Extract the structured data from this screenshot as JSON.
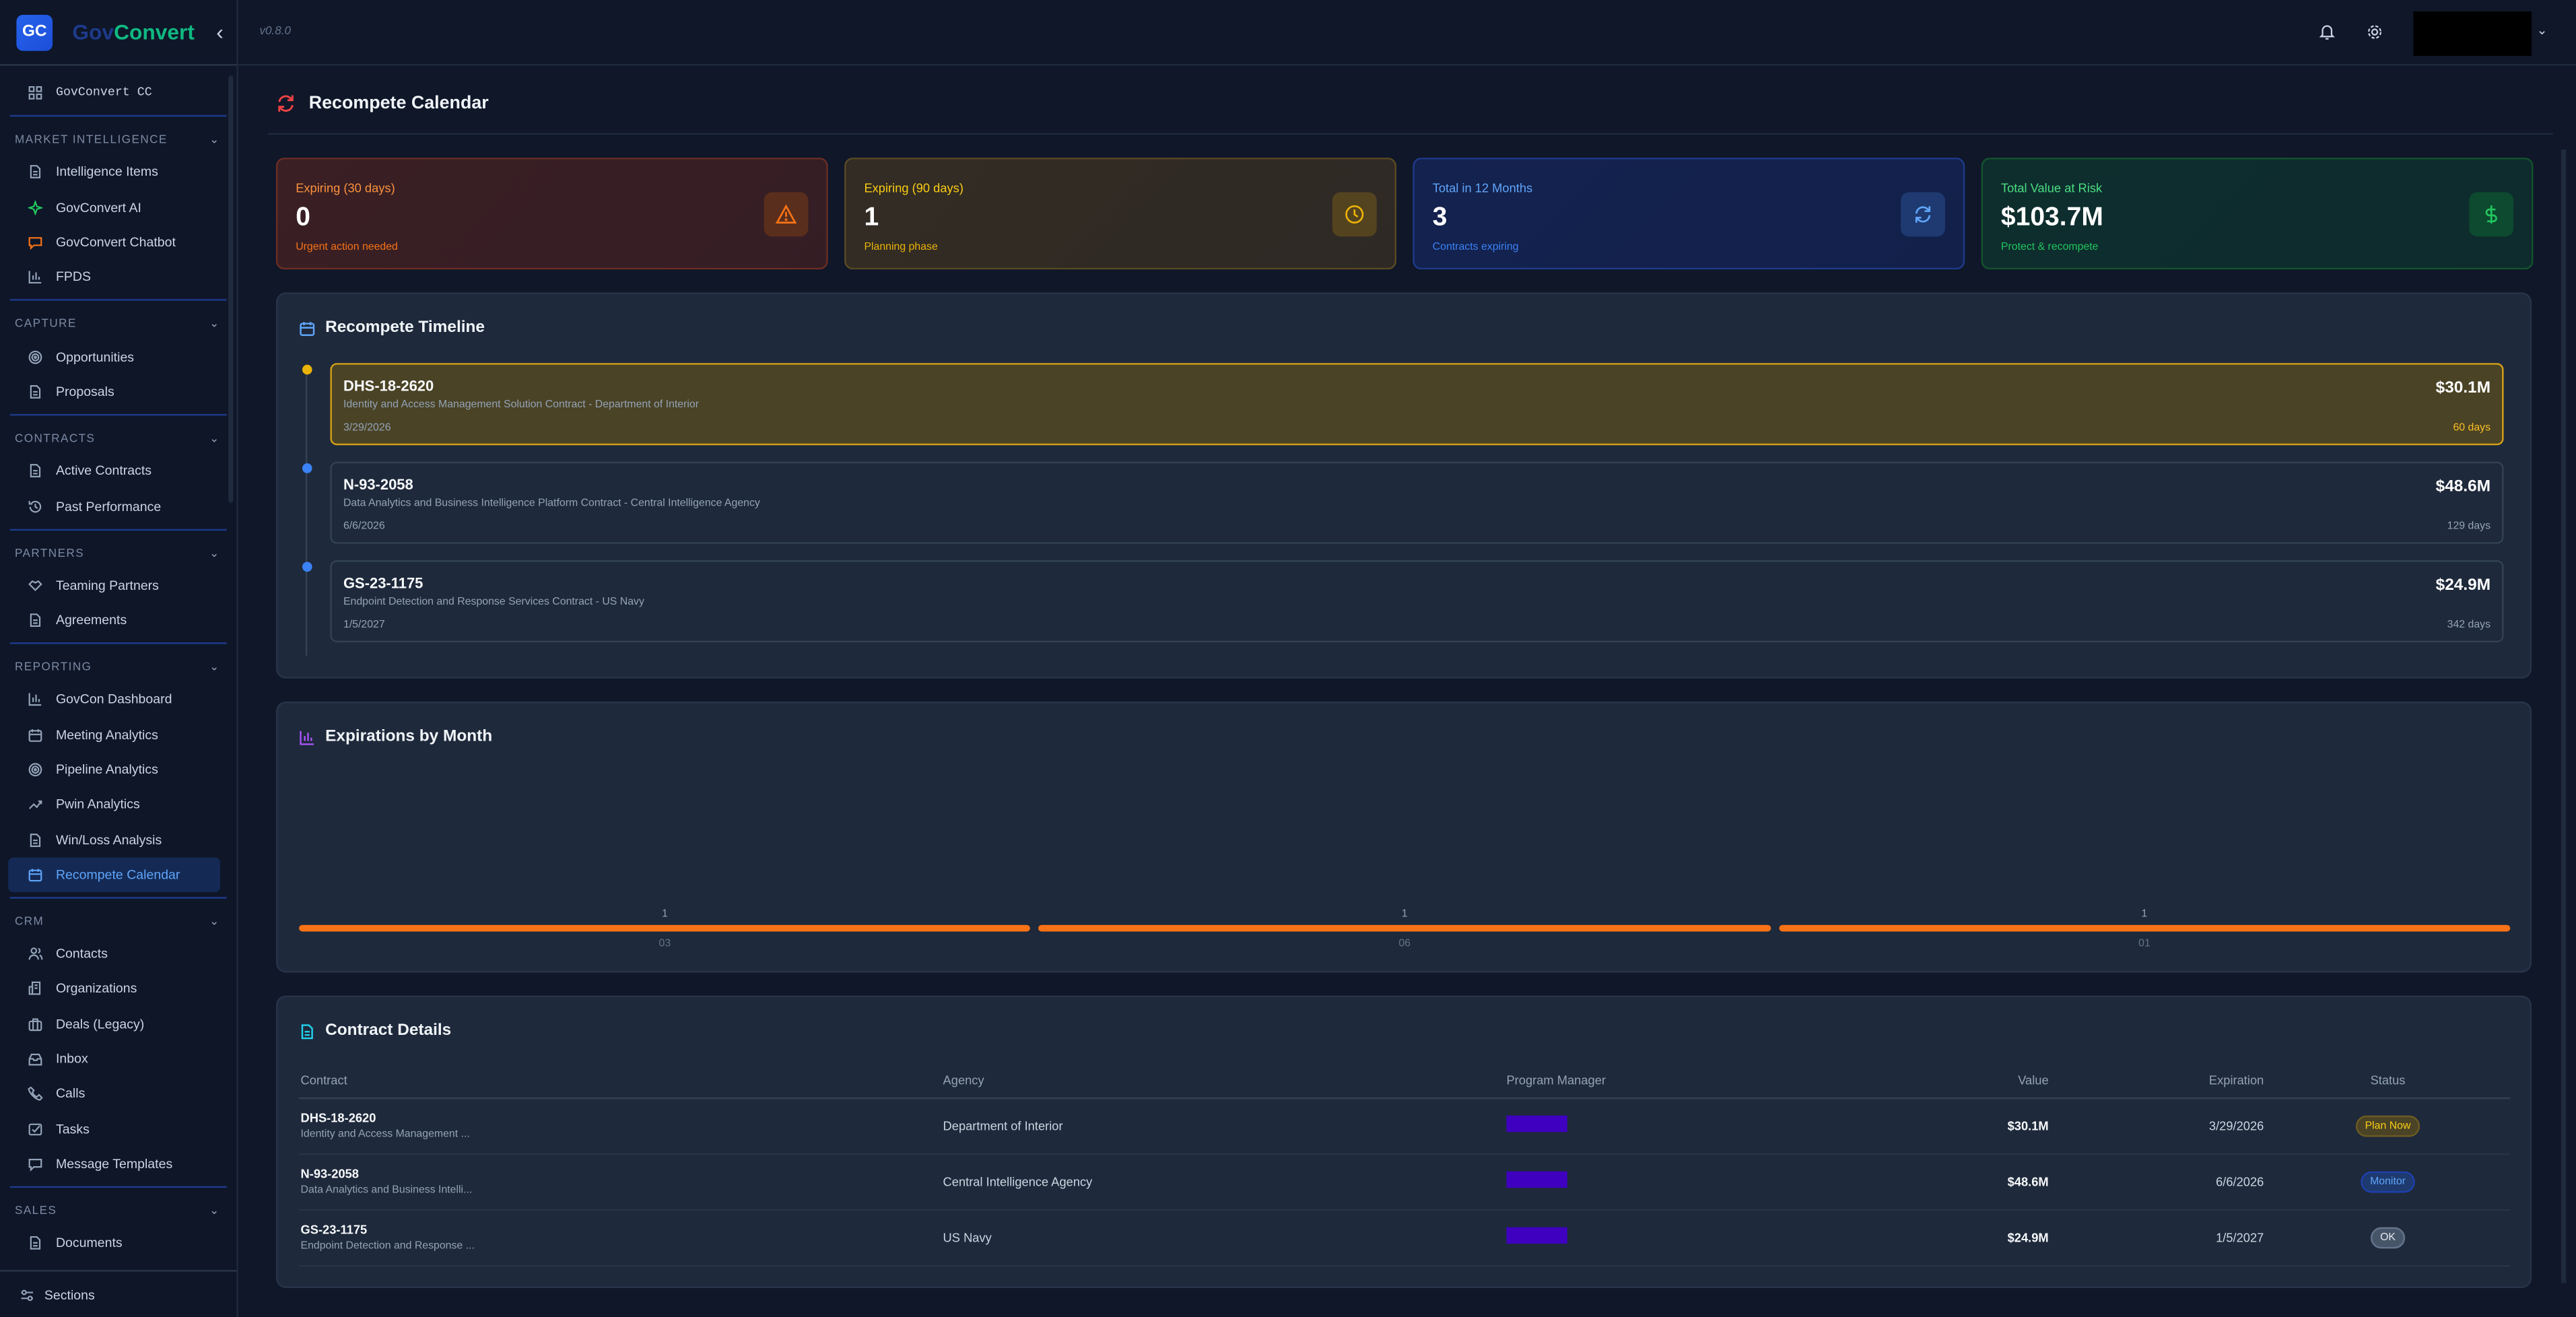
{
  "app": {
    "brand_part1": "Gov",
    "brand_part2": "Convert",
    "logo_text": "GC",
    "version": "v0.8.0"
  },
  "sidebar": {
    "top_item": "GovConvert CC",
    "sections": [
      {
        "title": "MARKET INTELLIGENCE",
        "items": [
          {
            "label": "Intelligence Items",
            "icon": "document-icon"
          },
          {
            "label": "GovConvert AI",
            "icon": "sparkles-icon"
          },
          {
            "label": "GovConvert Chatbot",
            "icon": "chat-icon"
          },
          {
            "label": "FPDS",
            "icon": "bar-chart-icon"
          }
        ]
      },
      {
        "title": "CAPTURE",
        "items": [
          {
            "label": "Opportunities",
            "icon": "target-icon"
          },
          {
            "label": "Proposals",
            "icon": "document-icon"
          }
        ]
      },
      {
        "title": "CONTRACTS",
        "items": [
          {
            "label": "Active Contracts",
            "icon": "document-icon"
          },
          {
            "label": "Past Performance",
            "icon": "history-icon"
          }
        ]
      },
      {
        "title": "PARTNERS",
        "items": [
          {
            "label": "Teaming Partners",
            "icon": "handshake-icon"
          },
          {
            "label": "Agreements",
            "icon": "document-icon"
          }
        ]
      },
      {
        "title": "REPORTING",
        "items": [
          {
            "label": "GovCon Dashboard",
            "icon": "bar-chart-icon"
          },
          {
            "label": "Meeting Analytics",
            "icon": "calendar-icon"
          },
          {
            "label": "Pipeline Analytics",
            "icon": "target-icon"
          },
          {
            "label": "Pwin Analytics",
            "icon": "trending-up-icon"
          },
          {
            "label": "Win/Loss Analysis",
            "icon": "document-icon"
          },
          {
            "label": "Recompete Calendar",
            "icon": "calendar-icon",
            "active": true
          }
        ]
      },
      {
        "title": "CRM",
        "items": [
          {
            "label": "Contacts",
            "icon": "users-icon"
          },
          {
            "label": "Organizations",
            "icon": "building-icon"
          },
          {
            "label": "Deals (Legacy)",
            "icon": "briefcase-icon"
          },
          {
            "label": "Inbox",
            "icon": "inbox-icon"
          },
          {
            "label": "Calls",
            "icon": "phone-icon"
          },
          {
            "label": "Tasks",
            "icon": "checkbox-icon"
          },
          {
            "label": "Message Templates",
            "icon": "message-icon"
          }
        ]
      },
      {
        "title": "SALES",
        "items": [
          {
            "label": "Documents",
            "icon": "document-icon"
          }
        ]
      }
    ],
    "footer": "Sections"
  },
  "page": {
    "title": "Recompete Calendar"
  },
  "stats": [
    {
      "label": "Expiring (30 days)",
      "value": "0",
      "sub": "Urgent action needed",
      "icon": "alert-triangle-icon",
      "bg": "#3a1f24",
      "border": "#6b2d22",
      "label_color": "#fb923c",
      "sub_color": "#f97316",
      "icon_bg": "#5a2e1c",
      "icon_color": "#f97316"
    },
    {
      "label": "Expiring (90 days)",
      "value": "1",
      "sub": "Planning phase",
      "icon": "clock-icon",
      "bg": "#332c24",
      "border": "#5a4a22",
      "label_color": "#facc15",
      "sub_color": "#eab308",
      "icon_bg": "#54431f",
      "icon_color": "#eab308"
    },
    {
      "label": "Total in 12 Months",
      "value": "3",
      "sub": "Contracts expiring",
      "icon": "refresh-icon",
      "bg": "#13224f",
      "border": "#1e3a8a",
      "label_color": "#60a5fa",
      "sub_color": "#3b82f6",
      "icon_bg": "#1e3a70",
      "icon_color": "#60a5fa"
    },
    {
      "label": "Total Value at Risk",
      "value": "$103.7M",
      "sub": "Protect & recompete",
      "icon": "dollar-icon",
      "bg": "#0e2e2e",
      "border": "#14532d",
      "label_color": "#4ade80",
      "sub_color": "#22c55e",
      "icon_bg": "#0d4a30",
      "icon_color": "#22c55e"
    }
  ],
  "timeline": {
    "title": "Recompete Timeline",
    "items": [
      {
        "id": "DHS-18-2620",
        "desc": "Identity and Access Management Solution Contract - Department of Interior",
        "date": "3/29/2026",
        "value": "$30.1M",
        "days": "60 days",
        "highlight": true,
        "dot": "#eab308"
      },
      {
        "id": "N-93-2058",
        "desc": "Data Analytics and Business Intelligence Platform Contract - Central Intelligence Agency",
        "date": "6/6/2026",
        "value": "$48.6M",
        "days": "129 days",
        "dot": "#3b82f6"
      },
      {
        "id": "GS-23-1175",
        "desc": "Endpoint Detection and Response Services Contract - US Navy",
        "date": "1/5/2027",
        "value": "$24.9M",
        "days": "342 days",
        "dot": "#3b82f6"
      }
    ]
  },
  "chart_data": {
    "type": "bar",
    "title": "Expirations by Month",
    "categories": [
      "03",
      "06",
      "01"
    ],
    "values": [
      1,
      1,
      1
    ],
    "color": "#f97316"
  },
  "table": {
    "title": "Contract Details",
    "headers": [
      "Contract",
      "Agency",
      "Program Manager",
      "Value",
      "Expiration",
      "Status"
    ],
    "rows": [
      {
        "id": "DHS-18-2620",
        "desc": "Identity and Access Management ...",
        "agency": "Department of Interior",
        "value": "$30.1M",
        "expiration": "3/29/2026",
        "status": "Plan Now",
        "status_color": "#facc15",
        "status_bg": "#4a4325",
        "status_border": "#6b5b22"
      },
      {
        "id": "N-93-2058",
        "desc": "Data Analytics and Business Intelli...",
        "agency": "Central Intelligence Agency",
        "value": "$48.6M",
        "expiration": "6/6/2026",
        "status": "Monitor",
        "status_color": "#60a5fa",
        "status_bg": "#1e3a6e",
        "status_border": "#1e40af"
      },
      {
        "id": "GS-23-1175",
        "desc": "Endpoint Detection and Response ...",
        "agency": "US Navy",
        "value": "$24.9M",
        "expiration": "1/5/2027",
        "status": "OK",
        "status_color": "#e2e8f0",
        "status_bg": "#475569",
        "status_border": "#64748b"
      }
    ]
  }
}
